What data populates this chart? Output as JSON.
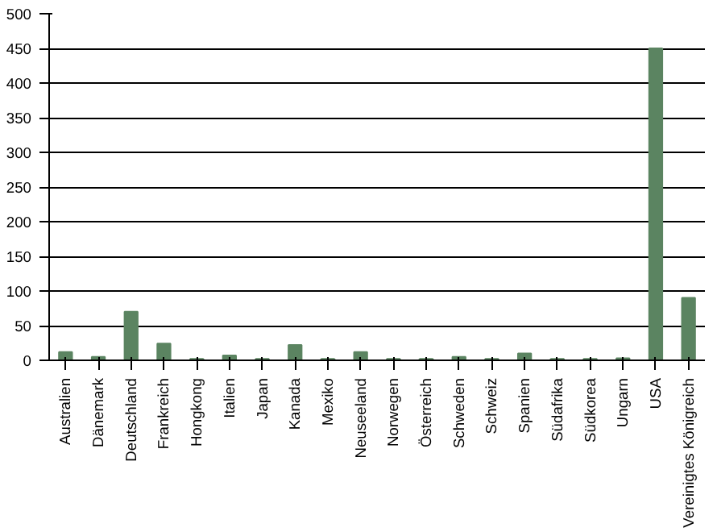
{
  "chart_data": {
    "type": "bar",
    "categories": [
      "Australien",
      "Dänemark",
      "Deutschland",
      "Frankreich",
      "Hongkong",
      "Italien",
      "Japan",
      "Kanada",
      "Mexiko",
      "Neuseeland",
      "Norwegen",
      "Österreich",
      "Schweden",
      "Schweiz",
      "Spanien",
      "Südafrika",
      "Südkorea",
      "Ungarn",
      "USA",
      "Vereinigtes Königreich"
    ],
    "values": [
      12,
      5,
      70,
      24,
      2,
      7,
      2,
      22,
      2,
      12,
      2,
      2,
      5,
      2,
      10,
      2,
      2,
      3,
      450,
      90
    ],
    "color": "#5b8461",
    "ylim": [
      0,
      500
    ],
    "yticks": [
      0,
      50,
      100,
      150,
      200,
      250,
      300,
      350,
      400,
      450,
      500
    ],
    "grid": "y"
  }
}
